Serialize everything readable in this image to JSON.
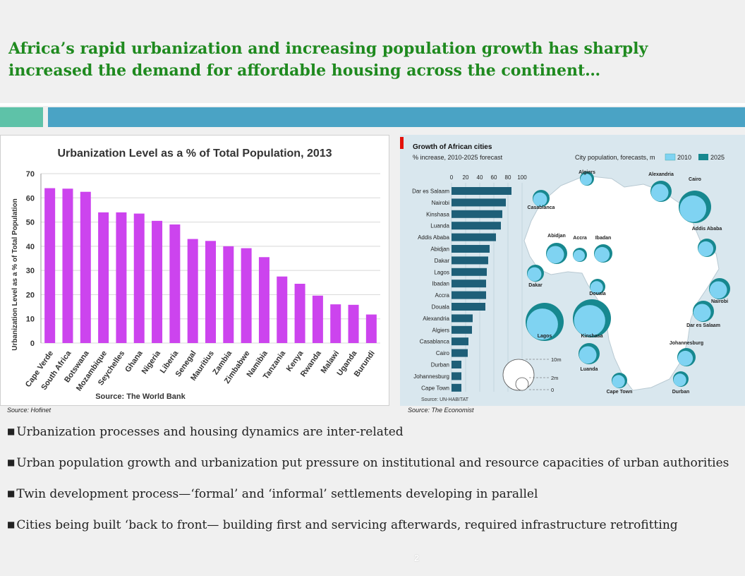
{
  "slide": {
    "title_line1": "Africa’s rapid urbanization and increasing population growth has sharply",
    "title_line2": "increased the demand for affordable housing across the continent…",
    "page_number": "2"
  },
  "sources": {
    "left": "Source: Hofinet",
    "right": "Source: The Economist"
  },
  "bullets": [
    "Urbanization processes and housing dynamics are inter-related",
    "Urban population growth and urbanization put pressure on institutional and resource capacities of urban authorities",
    "Twin development process—‘formal’ and ‘informal’ settlements developing in parallel",
    "Cities being built ‘back to front— building first and servicing afterwards, required infrastructure retrofitting"
  ],
  "colors": {
    "accent_green": "#1f8a1f",
    "bar_magenta": "#cc44ee",
    "bar_teal": "#1e5f78",
    "bubble_2010": "#7fd3f2",
    "bubble_2025": "#17888f",
    "band_teal": "#5ec2a8",
    "band_blue": "#4aa3c5"
  },
  "chart_data": [
    {
      "type": "bar",
      "title": "Urbanization Level as a % of Total Population, 2013",
      "ylabel": "Urbanization Level as a % of Total Population",
      "xlabel": "",
      "source_label": "Source: The World Bank",
      "ylim": [
        0,
        70
      ],
      "yticks": [
        0,
        10,
        20,
        30,
        40,
        50,
        60,
        70
      ],
      "grid": true,
      "categories": [
        "Cape Verde",
        "South Africa",
        "Botswana",
        "Mozambique",
        "Seychelles",
        "Ghana",
        "Nigeria",
        "Liberia",
        "Senegal",
        "Mauritius",
        "Zambia",
        "Zimbabwe",
        "Namibia",
        "Tanzania",
        "Kenya",
        "Rwanda",
        "Malawi",
        "Uganda",
        "Burundi"
      ],
      "values": [
        64,
        63.8,
        62.5,
        54,
        54,
        53.5,
        50.5,
        49,
        43,
        42.2,
        40,
        39.2,
        35.5,
        27.5,
        24.5,
        19.6,
        16,
        15.8,
        11.8
      ]
    },
    {
      "type": "bar",
      "orientation": "horizontal",
      "title": "Growth of African cities",
      "subtitle": "% increase, 2010-2025 forecast",
      "source_label": "Source: UN-HABITAT",
      "xlim": [
        0,
        100
      ],
      "xticks": [
        0,
        20,
        40,
        60,
        80,
        100
      ],
      "categories": [
        "Dar es Salaam",
        "Nairobi",
        "Kinshasa",
        "Luanda",
        "Addis Ababa",
        "Abidjan",
        "Dakar",
        "Lagos",
        "Ibadan",
        "Accra",
        "Douala",
        "Alexandria",
        "Algiers",
        "Casablanca",
        "Cairo",
        "Durban",
        "Johannesburg",
        "Cape Town"
      ],
      "values": [
        85,
        77,
        72,
        70,
        63,
        54,
        52,
        50,
        49,
        49,
        48,
        30,
        29,
        24,
        23,
        14,
        14,
        14
      ]
    },
    {
      "type": "map",
      "title": "City population, forecasts, m",
      "legend": [
        "2010",
        "2025"
      ],
      "size_legend": [
        "10m",
        "2m",
        "0"
      ],
      "cities": [
        "Algiers",
        "Alexandria",
        "Cairo",
        "Casablanca",
        "Abidjan",
        "Accra",
        "Ibadan",
        "Addis Ababa",
        "Dakar",
        "Douala",
        "Nairobi",
        "Dar es Salaam",
        "Lagos",
        "Kinshasa",
        "Luanda",
        "Johannesburg",
        "Cape Town",
        "Durban"
      ]
    }
  ]
}
